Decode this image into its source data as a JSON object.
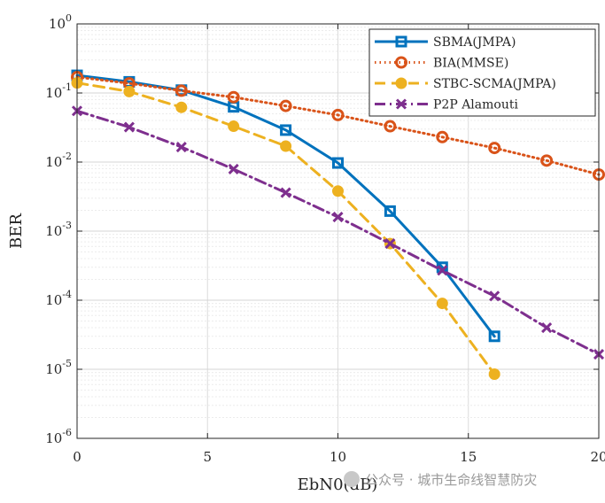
{
  "chart_data": {
    "type": "line",
    "title": "",
    "xlabel": "EbN0(dB)",
    "ylabel": "BER",
    "xlim": [
      0,
      20
    ],
    "ylim": [
      1e-06,
      1
    ],
    "yscale": "log",
    "grid": true,
    "legend_position": "top-right",
    "x_ticks": [
      "0",
      "5",
      "10",
      "15",
      "20"
    ],
    "y_ticks": [
      {
        "base": "10",
        "exp": "0"
      },
      {
        "base": "10",
        "exp": "-1"
      },
      {
        "base": "10",
        "exp": "-2"
      },
      {
        "base": "10",
        "exp": "-3"
      },
      {
        "base": "10",
        "exp": "-4"
      },
      {
        "base": "10",
        "exp": "-5"
      },
      {
        "base": "10",
        "exp": "-6"
      }
    ],
    "series": [
      {
        "name": "SBMA(JMPA)",
        "color": "#0072BD",
        "line_style": "solid",
        "marker": "square",
        "x": [
          0,
          2,
          4,
          6,
          8,
          10,
          12,
          14,
          16
        ],
        "y": [
          0.18,
          0.145,
          0.11,
          0.063,
          0.029,
          0.0097,
          0.00195,
          0.0003,
          3e-05
        ]
      },
      {
        "name": "BIA(MMSE)",
        "color": "#D95319",
        "line_style": "dotted",
        "marker": "circle",
        "x": [
          0,
          2,
          4,
          6,
          8,
          10,
          12,
          14,
          16,
          18,
          20
        ],
        "y": [
          0.17,
          0.138,
          0.108,
          0.087,
          0.065,
          0.048,
          0.033,
          0.023,
          0.016,
          0.0105,
          0.0066
        ]
      },
      {
        "name": "STBC-SCMA(JMPA)",
        "color": "#EDB120",
        "line_style": "dashed",
        "marker": "filled-circle",
        "x": [
          0,
          2,
          4,
          6,
          8,
          10,
          12,
          14,
          16
        ],
        "y": [
          0.14,
          0.105,
          0.062,
          0.033,
          0.017,
          0.0038,
          0.00066,
          9e-05,
          8.5e-06
        ]
      },
      {
        "name": "P2P Alamouti",
        "color": "#7E2F8E",
        "line_style": "dashdot",
        "marker": "x",
        "x": [
          0,
          2,
          4,
          6,
          8,
          10,
          12,
          14,
          16,
          18,
          20
        ],
        "y": [
          0.055,
          0.032,
          0.0165,
          0.0079,
          0.0036,
          0.0016,
          0.00066,
          0.00027,
          0.000115,
          4e-05,
          1.65e-05
        ]
      }
    ]
  },
  "watermark": {
    "text": "公众号 · 城市生命线智慧防灾"
  }
}
